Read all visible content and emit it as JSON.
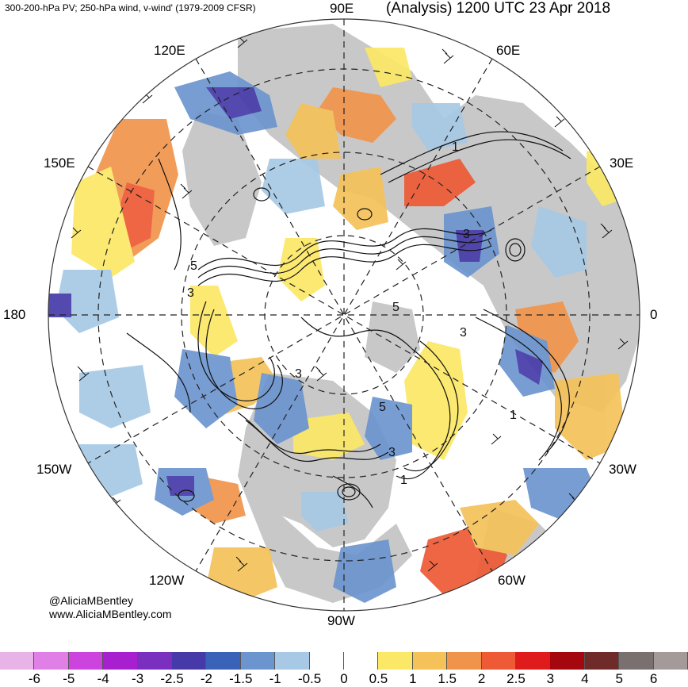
{
  "header": {
    "left_title": "300-200-hPa PV; 250-hPa wind, v-wind' (1979-2009 CFSR)",
    "right_title": "(Analysis) 1200 UTC 23 Apr 2018"
  },
  "longitude_labels": {
    "lon_90e": "90E",
    "lon_120e": "120E",
    "lon_60e": "60E",
    "lon_150e": "150E",
    "lon_30e": "30E",
    "lon_180": "180",
    "lon_0": "0",
    "lon_150w": "150W",
    "lon_30w": "30W",
    "lon_120w": "120W",
    "lon_60w": "60W",
    "lon_90w": "90W"
  },
  "contour_labels": [
    "5",
    "3",
    "3",
    "1",
    "3",
    "5",
    "3",
    "1",
    "1",
    "5",
    "3"
  ],
  "credits": {
    "handle": "@AliciaMBentley",
    "website": "www.AliciaMBentley.com"
  },
  "colorbar": {
    "labels": [
      "-6",
      "-5",
      "-4",
      "-3",
      "-2.5",
      "-2",
      "-1.5",
      "-1",
      "-0.5",
      "0",
      "0.5",
      "1",
      "1.5",
      "2",
      "2.5",
      "3",
      "4",
      "5",
      "6"
    ],
    "colors": [
      "#e8b4e8",
      "#e07fe6",
      "#cc44dd",
      "#a81fcf",
      "#7a2fbf",
      "#463aa8",
      "#3a62b8",
      "#6c95cf",
      "#a7c9e5",
      "#ffffff",
      "#ffffff",
      "#fbe866",
      "#f5c25a",
      "#f1944b",
      "#ee5a36",
      "#e01b1b",
      "#a5070e",
      "#6f2a2a",
      "#7b7070",
      "#a49a9a"
    ]
  }
}
